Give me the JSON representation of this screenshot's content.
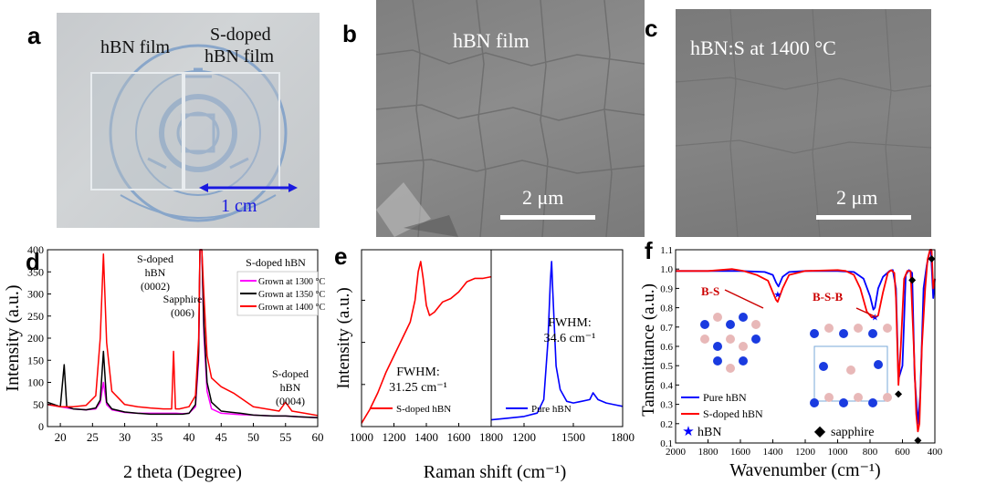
{
  "panel_labels": {
    "a": "a",
    "b": "b",
    "c": "c",
    "d": "d",
    "e": "e",
    "f": "f"
  },
  "panel_a": {
    "label_left": "hBN film",
    "label_right_line1": "S-doped",
    "label_right_line2": "hBN film",
    "scale": "1 cm",
    "scale_color": "#1a1adf"
  },
  "panel_b": {
    "title": "hBN film",
    "scale": "2 μm"
  },
  "panel_c": {
    "title": "hBN:S at 1400 °C",
    "scale": "2 μm"
  },
  "chart_data": [
    {
      "id": "d",
      "type": "line",
      "xlabel": "2 theta (Degree)",
      "ylabel": "Intensity (a.u.)",
      "xlim": [
        18,
        60
      ],
      "ylim": [
        0,
        400
      ],
      "xticks": [
        20,
        25,
        30,
        35,
        40,
        45,
        50,
        55,
        60
      ],
      "yticks": [
        0,
        50,
        100,
        150,
        200,
        250,
        300,
        350,
        400
      ],
      "legend_title": "S-doped hBN",
      "legend_position": "top-right",
      "annotations": [
        {
          "lines": [
            "S-doped",
            "hBN",
            "(0002)"
          ]
        },
        {
          "lines": [
            "Sapphire",
            "(006)"
          ]
        },
        {
          "lines": [
            "S-doped",
            "hBN",
            "(0004)"
          ]
        }
      ],
      "series": [
        {
          "name": "Grown at 1300 °C",
          "color": "#ff00ff",
          "x": [
            18,
            20,
            22,
            24,
            25.5,
            26.2,
            26.7,
            27.2,
            28,
            30,
            32,
            34,
            36,
            37.5,
            38,
            39,
            40,
            41,
            41.5,
            41.7,
            42,
            42.3,
            42.8,
            43.5,
            45,
            48,
            50,
            53,
            55,
            57,
            60
          ],
          "y": [
            50,
            45,
            40,
            38,
            40,
            55,
            100,
            50,
            38,
            32,
            30,
            30,
            30,
            30,
            30,
            29,
            30,
            45,
            150,
            400,
            400,
            210,
            80,
            40,
            30,
            27,
            26,
            24,
            24,
            22,
            20
          ]
        },
        {
          "name": "Grown at 1350 °C",
          "color": "#000000",
          "x": [
            18,
            20,
            20.6,
            21,
            22,
            24,
            25.5,
            26.2,
            26.7,
            27.2,
            28,
            30,
            32,
            34,
            36,
            37.5,
            38,
            39,
            40,
            41,
            41.5,
            41.7,
            42,
            42.3,
            42.8,
            43.5,
            45,
            48,
            50,
            53,
            55,
            57,
            60
          ],
          "y": [
            55,
            45,
            140,
            45,
            40,
            38,
            42,
            60,
            170,
            55,
            40,
            33,
            30,
            28,
            28,
            28,
            28,
            28,
            30,
            50,
            170,
            400,
            400,
            230,
            100,
            55,
            35,
            30,
            26,
            24,
            24,
            22,
            20
          ]
        },
        {
          "name": "Grown at 1400 °C",
          "color": "#ff0000",
          "x": [
            18,
            20,
            22,
            24,
            25.5,
            26.2,
            26.7,
            27.2,
            28,
            30,
            32,
            34,
            36,
            37.3,
            37.6,
            37.9,
            38.5,
            40,
            41,
            41.5,
            41.7,
            42,
            42.3,
            42.8,
            43.5,
            45,
            47,
            50,
            52,
            54,
            55,
            56,
            58,
            60
          ],
          "y": [
            50,
            45,
            45,
            48,
            70,
            200,
            390,
            190,
            80,
            50,
            45,
            42,
            40,
            40,
            170,
            40,
            40,
            45,
            70,
            200,
            400,
            400,
            300,
            160,
            110,
            90,
            75,
            45,
            40,
            35,
            55,
            35,
            30,
            25
          ]
        }
      ]
    },
    {
      "id": "e",
      "type": "line",
      "xlabel": "Raman shift (cm⁻¹)",
      "ylabel": "Intensity (a.u.)",
      "subplots": [
        {
          "xlim": [
            1000,
            1800
          ],
          "xticks": [
            1000,
            1200,
            1400,
            1600,
            1800
          ],
          "fwhm_line1": "FWHM:",
          "fwhm_line2": "31.25 cm⁻¹",
          "series": {
            "name": "S-doped hBN",
            "color": "#ff0000",
            "x": [
              1000,
              1050,
              1100,
              1150,
              1200,
              1250,
              1300,
              1330,
              1350,
              1365,
              1380,
              1400,
              1420,
              1450,
              1500,
              1550,
              1600,
              1650,
              1700,
              1750,
              1800
            ],
            "y": [
              0.02,
              0.1,
              0.2,
              0.32,
              0.42,
              0.52,
              0.62,
              0.75,
              0.92,
              0.98,
              0.88,
              0.72,
              0.66,
              0.68,
              0.74,
              0.76,
              0.8,
              0.86,
              0.88,
              0.88,
              0.89
            ]
          }
        },
        {
          "xlim": [
            1000,
            1800
          ],
          "xticks": [
            1200,
            1500,
            1800
          ],
          "fwhm_line1": "FWHM:",
          "fwhm_line2": "34.6 cm⁻¹",
          "series": {
            "name": "Pure hBN",
            "color": "#0000ff",
            "x": [
              1000,
              1100,
              1200,
              1280,
              1320,
              1345,
              1360,
              1368,
              1375,
              1395,
              1420,
              1460,
              1500,
              1550,
              1600,
              1620,
              1650,
              1700,
              1750,
              1800
            ],
            "y": [
              0.04,
              0.05,
              0.06,
              0.08,
              0.16,
              0.5,
              0.86,
              0.98,
              0.8,
              0.36,
              0.22,
              0.15,
              0.14,
              0.15,
              0.16,
              0.2,
              0.16,
              0.14,
              0.13,
              0.12
            ]
          }
        }
      ]
    },
    {
      "id": "f",
      "type": "line",
      "xlabel": "Wavenumber (cm⁻¹)",
      "ylabel": "Tansmittance (a.u.)",
      "xlim": [
        2000,
        400
      ],
      "ylim": [
        0.1,
        1.1
      ],
      "xticks": [
        2000,
        1800,
        1600,
        1400,
        1200,
        1000,
        800,
        600,
        400
      ],
      "yticks": [
        0.1,
        0.2,
        0.3,
        0.4,
        0.5,
        0.6,
        0.7,
        0.8,
        0.9,
        1.0,
        1.1
      ],
      "annotations": [
        "B-S",
        "B-S-B"
      ],
      "legend_position": "bottom-left",
      "markers_legend": [
        {
          "symbol": "★",
          "label": "hBN",
          "color": "#0000ff"
        },
        {
          "symbol": "◆",
          "label": "sapphire",
          "color": "#000000"
        }
      ],
      "series": [
        {
          "name": "Pure hBN",
          "color": "#0000ff",
          "x": [
            2000,
            1800,
            1600,
            1450,
            1400,
            1380,
            1365,
            1340,
            1300,
            1200,
            1000,
            900,
            840,
            800,
            780,
            770,
            750,
            720,
            680,
            660,
            640,
            625,
            600,
            580,
            560,
            540,
            525,
            505,
            490,
            470,
            450,
            435,
            425,
            410,
            400
          ],
          "y": [
            0.99,
            0.99,
            0.99,
            0.985,
            0.97,
            0.93,
            0.91,
            0.96,
            0.985,
            0.99,
            0.99,
            0.985,
            0.95,
            0.86,
            0.79,
            0.8,
            0.9,
            0.96,
            0.99,
            0.995,
            0.9,
            0.43,
            0.5,
            0.97,
            0.995,
            0.98,
            0.45,
            0.2,
            0.35,
            0.9,
            1.02,
            1.08,
            1.1,
            0.85,
            0.95
          ]
        },
        {
          "name": "S-doped hBN",
          "color": "#ff0000",
          "x": [
            2000,
            1800,
            1650,
            1580,
            1500,
            1430,
            1400,
            1380,
            1370,
            1340,
            1300,
            1200,
            1000,
            950,
            900,
            860,
            820,
            790,
            770,
            750,
            720,
            690,
            670,
            650,
            640,
            625,
            610,
            590,
            570,
            550,
            530,
            515,
            505,
            495,
            480,
            460,
            445,
            430,
            420,
            410,
            400
          ],
          "y": [
            0.99,
            0.99,
            1.0,
            0.99,
            0.97,
            0.94,
            0.88,
            0.84,
            0.83,
            0.9,
            0.97,
            0.99,
            0.995,
            0.99,
            0.97,
            0.9,
            0.78,
            0.75,
            0.75,
            0.76,
            0.88,
            0.98,
            0.995,
            0.98,
            0.85,
            0.4,
            0.6,
            0.95,
            0.99,
            0.99,
            0.6,
            0.25,
            0.16,
            0.2,
            0.6,
            0.9,
            1.05,
            1.1,
            1.1,
            0.9,
            0.95
          ]
        }
      ],
      "sapphire_marks_x": [
        625,
        540,
        505,
        420
      ]
    }
  ]
}
